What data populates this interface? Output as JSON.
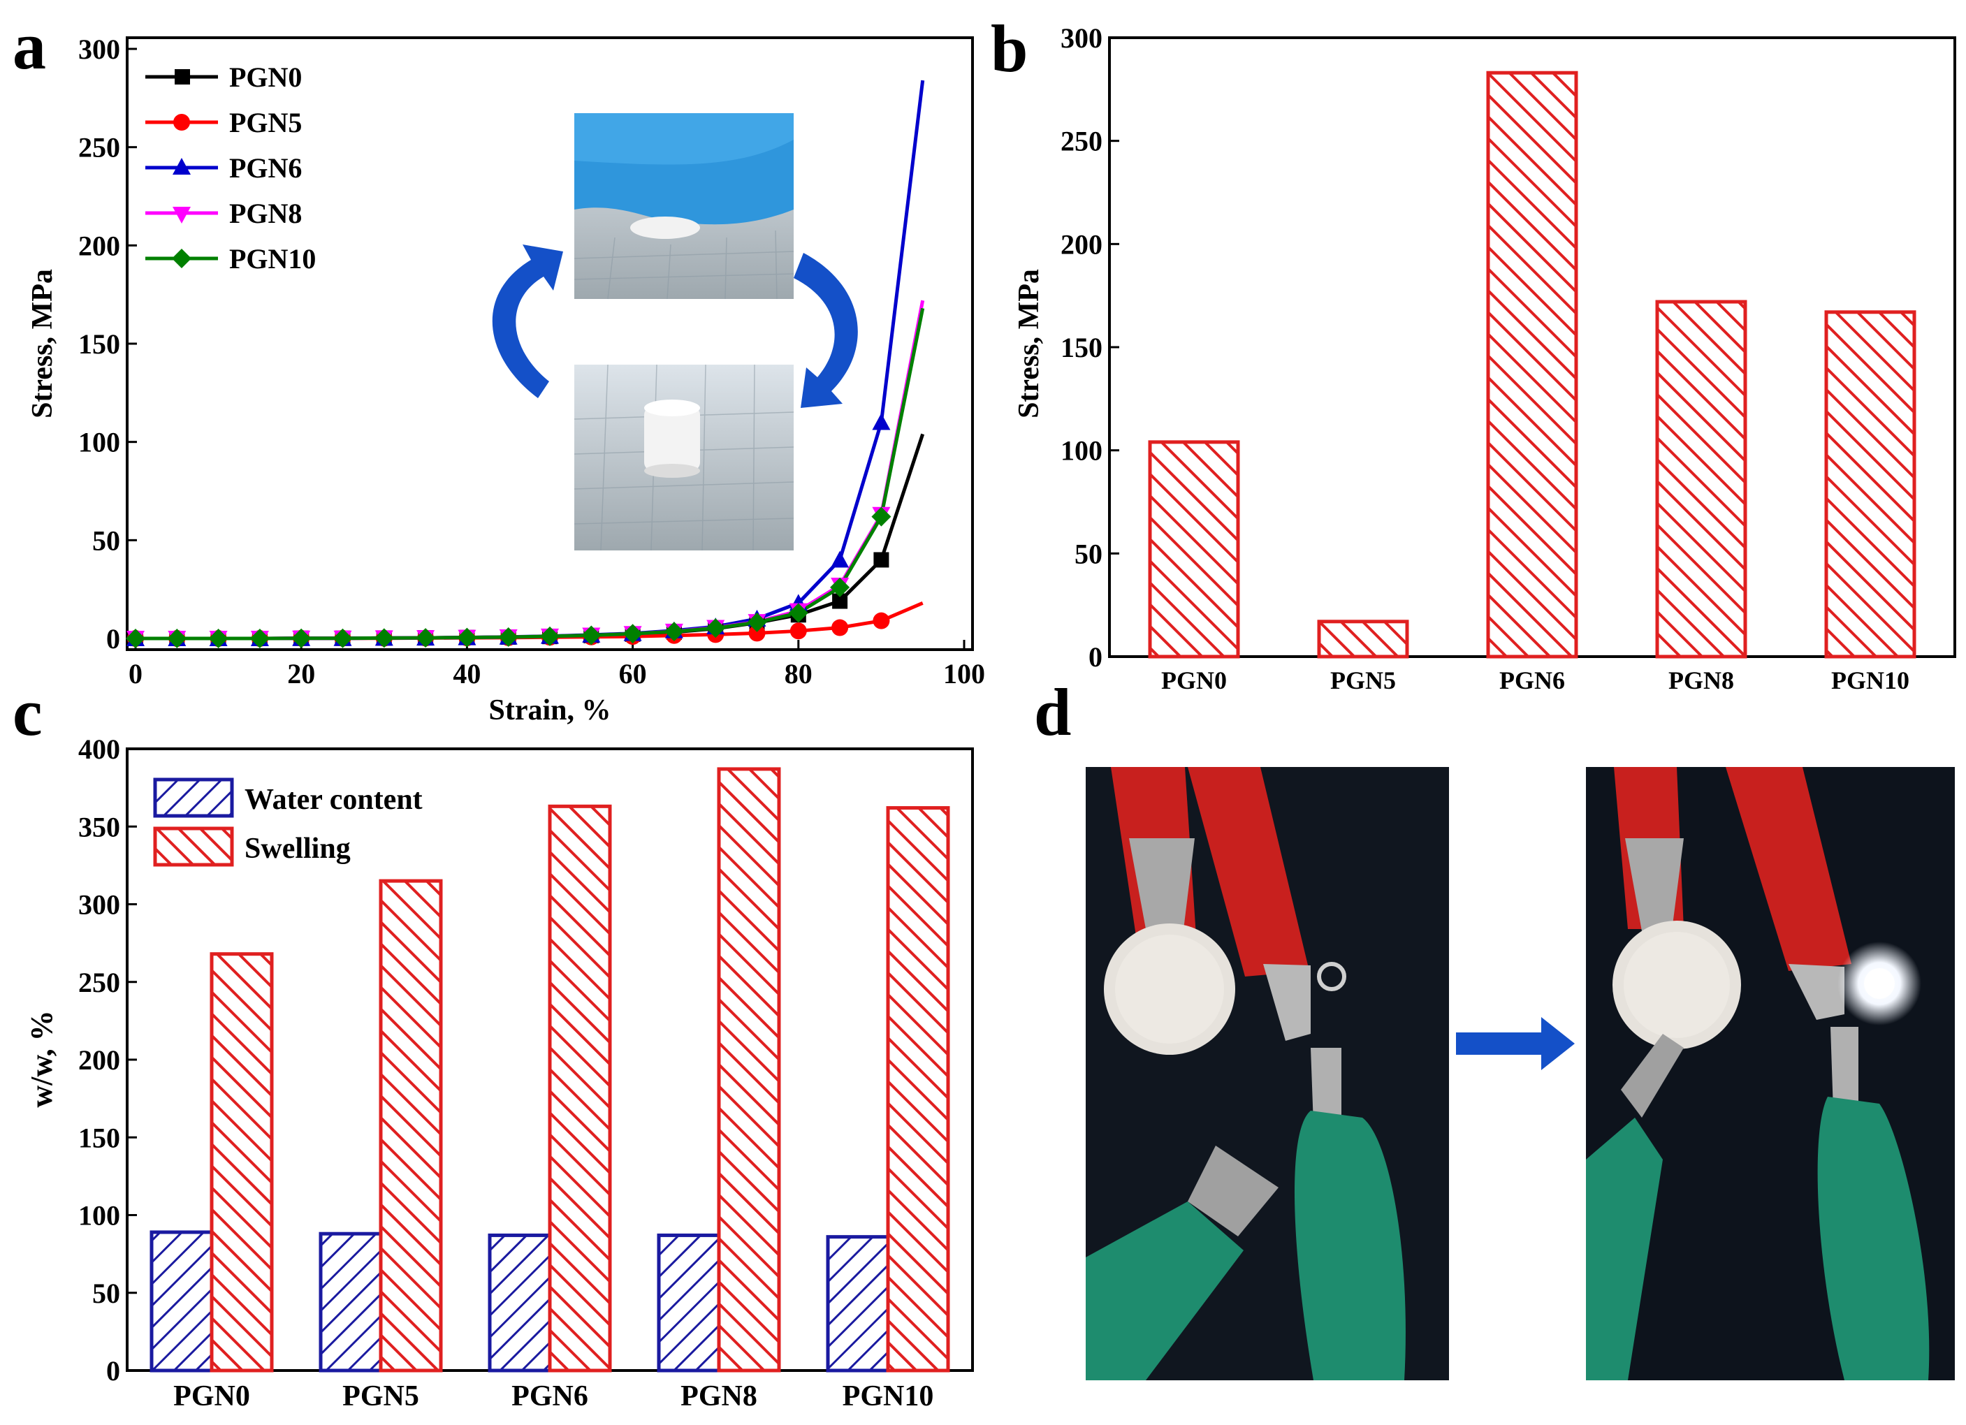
{
  "panels": {
    "a": "a",
    "b": "b",
    "c": "c",
    "d": "d"
  },
  "chart_data": [
    {
      "type": "line",
      "panel": "a",
      "xlabel": "Strain, %",
      "ylabel": "Stress, MPa",
      "xlim": [
        0,
        100
      ],
      "ylim": [
        0,
        300
      ],
      "xticks": [
        0,
        20,
        40,
        60,
        80,
        100
      ],
      "yticks": [
        0,
        50,
        100,
        150,
        200,
        250,
        300
      ],
      "legend_position": "top-left",
      "marker_x": [
        0,
        5,
        10,
        15,
        20,
        25,
        30,
        35,
        40,
        45,
        50,
        55,
        60,
        65,
        70,
        75,
        80,
        85,
        90
      ],
      "series": [
        {
          "name": "PGN0",
          "color": "#000000",
          "marker": "square",
          "x": [
            0,
            5,
            10,
            15,
            20,
            25,
            30,
            35,
            40,
            45,
            50,
            55,
            60,
            65,
            70,
            75,
            80,
            85,
            90,
            95
          ],
          "y": [
            0,
            0,
            0,
            0,
            0.1,
            0.1,
            0.2,
            0.3,
            0.5,
            0.7,
            1,
            1.5,
            2.2,
            3.2,
            5,
            8,
            12,
            19,
            40,
            104
          ]
        },
        {
          "name": "PGN5",
          "color": "#ff0000",
          "marker": "circle",
          "x": [
            0,
            5,
            10,
            15,
            20,
            25,
            30,
            35,
            40,
            45,
            50,
            55,
            60,
            65,
            70,
            75,
            80,
            85,
            90,
            95
          ],
          "y": [
            0,
            0,
            0,
            0,
            0.1,
            0.1,
            0.1,
            0.2,
            0.3,
            0.4,
            0.6,
            0.8,
            1,
            1.5,
            2,
            2.7,
            3.8,
            5.5,
            9,
            18
          ]
        },
        {
          "name": "PGN6",
          "color": "#0000cc",
          "marker": "triangle-up",
          "x": [
            0,
            5,
            10,
            15,
            20,
            25,
            30,
            35,
            40,
            45,
            50,
            55,
            60,
            65,
            70,
            75,
            80,
            85,
            90,
            95
          ],
          "y": [
            0,
            0,
            0,
            0,
            0.1,
            0.1,
            0.2,
            0.3,
            0.5,
            0.8,
            1.2,
            1.8,
            2.6,
            4,
            6,
            10,
            18,
            40,
            110,
            284
          ]
        },
        {
          "name": "PGN8",
          "color": "#ff00ff",
          "marker": "triangle-down",
          "x": [
            0,
            5,
            10,
            15,
            20,
            25,
            30,
            35,
            40,
            45,
            50,
            55,
            60,
            65,
            70,
            75,
            80,
            85,
            90,
            95
          ],
          "y": [
            0,
            0,
            0,
            0,
            0.1,
            0.1,
            0.2,
            0.3,
            0.5,
            0.7,
            1.1,
            1.6,
            2.4,
            3.6,
            5.5,
            8.5,
            14,
            27,
            63,
            172
          ]
        },
        {
          "name": "PGN10",
          "color": "#008000",
          "marker": "diamond",
          "x": [
            0,
            5,
            10,
            15,
            20,
            25,
            30,
            35,
            40,
            45,
            50,
            55,
            60,
            65,
            70,
            75,
            80,
            85,
            90,
            95
          ],
          "y": [
            0,
            0,
            0,
            0,
            0.1,
            0.1,
            0.2,
            0.3,
            0.5,
            0.7,
            1.1,
            1.6,
            2.4,
            3.5,
            5.3,
            8.2,
            13,
            26,
            62,
            168
          ]
        }
      ]
    },
    {
      "type": "bar",
      "panel": "b",
      "xlabel": "",
      "ylabel": "Stress, MPa",
      "categories": [
        "PGN0",
        "PGN5",
        "PGN6",
        "PGN8",
        "PGN10"
      ],
      "values": [
        104,
        17,
        283,
        172,
        167
      ],
      "ylim": [
        0,
        300
      ],
      "yticks": [
        0,
        50,
        100,
        150,
        200,
        250,
        300
      ],
      "color": "#e02020",
      "hatch": "diagonal"
    },
    {
      "type": "bar",
      "panel": "c",
      "xlabel": "",
      "ylabel": "w/w, %",
      "categories": [
        "PGN0",
        "PGN5",
        "PGN6",
        "PGN8",
        "PGN10"
      ],
      "ylim": [
        0,
        400
      ],
      "yticks": [
        0,
        50,
        100,
        150,
        200,
        250,
        300,
        350,
        400
      ],
      "legend_position": "top-left",
      "series": [
        {
          "name": "Water content",
          "color": "#1a1aa0",
          "values": [
            89,
            88,
            87,
            87,
            86
          ]
        },
        {
          "name": "Swelling",
          "color": "#e02020",
          "values": [
            268,
            315,
            363,
            387,
            362
          ]
        }
      ]
    }
  ],
  "photos": {
    "inset_top": "gloved-hand-pressing-sample-photo",
    "inset_bottom": "cylindrical-sample-photo",
    "circuit_left": "circuit-off-photo",
    "circuit_right": "circuit-on-led-photo"
  }
}
